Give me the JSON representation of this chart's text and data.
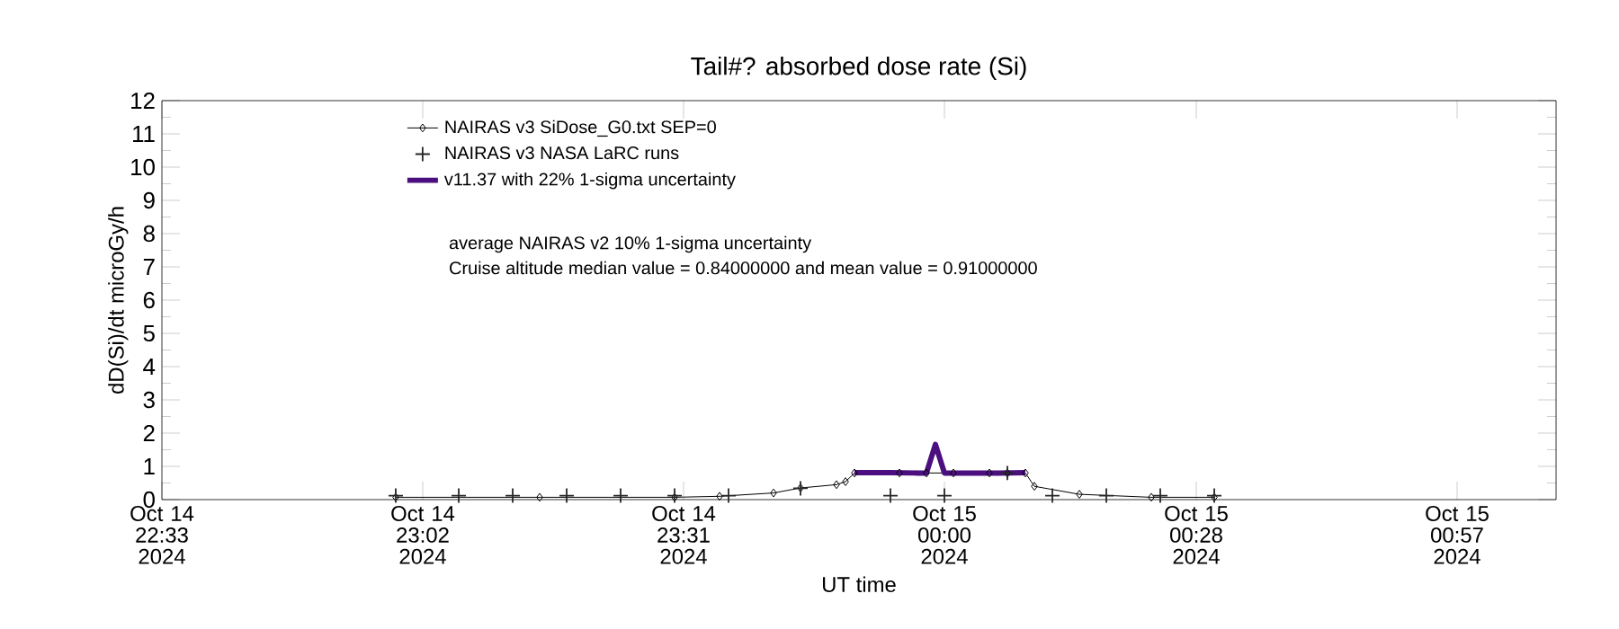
{
  "chart_data": {
    "type": "line",
    "title": "Tail#? absorbed dose rate (Si)",
    "xlabel": "UT time",
    "ylabel": "dD(Si)/dt microGy/h",
    "xlim": [
      "2024-10-14T22:33",
      "2024-10-15T01:08"
    ],
    "ylim": [
      0,
      12
    ],
    "xticks": [
      {
        "value": "2024-10-14T22:33",
        "label": "Oct 14 22:33 2024"
      },
      {
        "value": "2024-10-14T23:02",
        "label": "Oct 14 23:02 2024"
      },
      {
        "value": "2024-10-14T23:31",
        "label": "Oct 14 23:31 2024"
      },
      {
        "value": "2024-10-15T00:00",
        "label": "Oct 15 00:00 2024"
      },
      {
        "value": "2024-10-15T00:28",
        "label": "Oct 15 00:28 2024"
      },
      {
        "value": "2024-10-15T00:57",
        "label": "Oct 15 00:57 2024"
      }
    ],
    "yticks": [
      0,
      1,
      2,
      3,
      4,
      5,
      6,
      7,
      8,
      9,
      10,
      11,
      12
    ],
    "grid": false,
    "legend": "top left",
    "annotations": [
      "average NAIRAS v2 10% 1-sigma uncertainty",
      "Cruise altitude median value = 0.84000000 and mean value = 0.91000000"
    ],
    "series": [
      {
        "name": "NAIRAS v3 SiDose_G0.txt SEP=0",
        "color": "#000000",
        "marker": "diamond",
        "x": [
          "2024-10-14T22:59",
          "2024-10-14T23:15",
          "2024-10-14T23:30",
          "2024-10-14T23:35",
          "2024-10-14T23:41",
          "2024-10-14T23:44",
          "2024-10-14T23:48",
          "2024-10-14T23:49",
          "2024-10-14T23:50",
          "2024-10-14T23:55",
          "2024-10-14T23:58",
          "2024-10-15T00:01",
          "2024-10-15T00:05",
          "2024-10-15T00:07",
          "2024-10-15T00:09",
          "2024-10-15T00:10",
          "2024-10-15T00:15",
          "2024-10-15T00:23",
          "2024-10-15T00:30"
        ],
        "values": [
          0.07,
          0.07,
          0.07,
          0.1,
          0.2,
          0.35,
          0.45,
          0.54,
          0.8,
          0.8,
          0.8,
          0.8,
          0.8,
          0.8,
          0.8,
          0.4,
          0.16,
          0.07,
          0.07
        ]
      },
      {
        "name": "NAIRAS v3 NASA LaRC runs",
        "color": "#262626",
        "type": "scatter",
        "marker": "cross",
        "x": [
          "2024-10-14T22:59",
          "2024-10-14T23:06",
          "2024-10-14T23:12",
          "2024-10-14T23:18",
          "2024-10-14T23:24",
          "2024-10-14T23:30",
          "2024-10-14T23:36",
          "2024-10-14T23:44",
          "2024-10-14T23:54",
          "2024-10-15T00:00",
          "2024-10-15T00:07",
          "2024-10-15T00:12",
          "2024-10-15T00:18",
          "2024-10-15T00:24",
          "2024-10-15T00:30"
        ],
        "values": [
          0.12,
          0.12,
          0.12,
          0.12,
          0.12,
          0.12,
          0.12,
          0.34,
          0.12,
          0.12,
          0.8,
          0.12,
          0.12,
          0.12,
          0.12
        ]
      },
      {
        "name": "v11.37 with 22% 1-sigma uncertainty",
        "color": "#4b0f7f",
        "marker": "none",
        "x": [
          "2024-10-14T23:50",
          "2024-10-14T23:54",
          "2024-10-14T23:57",
          "2024-10-14T23:58",
          "2024-10-14T23:59",
          "2024-10-15T00:00",
          "2024-10-15T00:03",
          "2024-10-15T00:06",
          "2024-10-15T00:09"
        ],
        "values": [
          0.81,
          0.81,
          0.8,
          0.8,
          1.66,
          0.8,
          0.8,
          0.8,
          0.81
        ]
      }
    ]
  }
}
